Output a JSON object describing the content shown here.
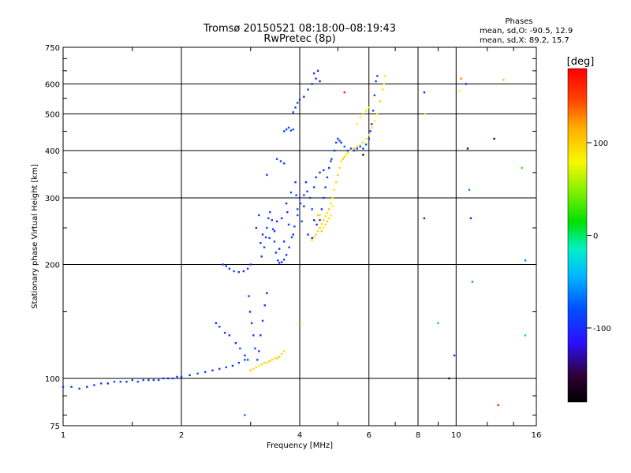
{
  "header": {
    "title": "Tromsø 20150521 08:18:00–08:19:43",
    "subtitle": "RwPretec (8p)",
    "phases_title": "Phases",
    "phases_line_o": "mean, sd,O: -90.5, 12.9",
    "phases_line_x": "mean, sd,X:  89.2, 15.7"
  },
  "colorbar": {
    "unit_label": "[deg]",
    "ticks": [
      {
        "value": 100,
        "label": "100"
      },
      {
        "value": 0,
        "label": "0"
      },
      {
        "value": -100,
        "label": "-100"
      }
    ],
    "range": [
      -180,
      180
    ]
  },
  "chart_data": {
    "type": "scatter",
    "title": "Tromsø 20150521 08:18:00–08:19:43",
    "subtitle": "RwPretec (8p)",
    "xlabel": "Frequency [MHz]",
    "ylabel": "Stationary phase Virtual Height [km]",
    "x_scale": "log",
    "y_scale": "log",
    "xlim": [
      1,
      16
    ],
    "ylim": [
      75,
      750
    ],
    "x_ticks": [
      {
        "value": 1,
        "label": "1"
      },
      {
        "value": 2,
        "label": "2"
      },
      {
        "value": 4,
        "label": "4"
      },
      {
        "value": 6,
        "label": "6"
      },
      {
        "value": 8,
        "label": "8"
      },
      {
        "value": 10,
        "label": "10"
      },
      {
        "value": 16,
        "label": "16"
      }
    ],
    "x_grid": [
      2,
      4,
      6,
      8,
      10
    ],
    "y_ticks": [
      {
        "value": 75,
        "label": "75"
      },
      {
        "value": 100,
        "label": "100"
      },
      {
        "value": 200,
        "label": "200"
      },
      {
        "value": 300,
        "label": "300"
      },
      {
        "value": 400,
        "label": "400"
      },
      {
        "value": 500,
        "label": "500"
      },
      {
        "value": 600,
        "label": "600"
      },
      {
        "value": 750,
        "label": "750"
      }
    ],
    "y_grid": [
      100,
      200,
      300,
      400,
      500,
      600
    ],
    "grid": true,
    "series": [
      {
        "name": "O-mode",
        "color_phase": -90.5,
        "points": [
          [
            1.0,
            95
          ],
          [
            1.05,
            95
          ],
          [
            1.1,
            94
          ],
          [
            1.15,
            95
          ],
          [
            1.2,
            96
          ],
          [
            1.25,
            97
          ],
          [
            1.3,
            97
          ],
          [
            1.35,
            98
          ],
          [
            1.4,
            98
          ],
          [
            1.45,
            98
          ],
          [
            1.5,
            99
          ],
          [
            1.55,
            98
          ],
          [
            1.6,
            99
          ],
          [
            1.65,
            99
          ],
          [
            1.7,
            99
          ],
          [
            1.75,
            99
          ],
          [
            1.8,
            100
          ],
          [
            1.85,
            100
          ],
          [
            1.9,
            100
          ],
          [
            1.95,
            101
          ],
          [
            2.0,
            101
          ],
          [
            2.1,
            102
          ],
          [
            2.2,
            103
          ],
          [
            2.3,
            104
          ],
          [
            2.4,
            105
          ],
          [
            2.5,
            106
          ],
          [
            2.6,
            107
          ],
          [
            2.7,
            108
          ],
          [
            2.8,
            110
          ],
          [
            2.9,
            112
          ],
          [
            2.55,
            200
          ],
          [
            2.6,
            198
          ],
          [
            2.65,
            195
          ],
          [
            2.72,
            192
          ],
          [
            2.8,
            191
          ],
          [
            2.88,
            192
          ],
          [
            2.95,
            195
          ],
          [
            3.0,
            200
          ],
          [
            2.45,
            140
          ],
          [
            2.5,
            137
          ],
          [
            2.58,
            132
          ],
          [
            2.65,
            130
          ],
          [
            2.75,
            124
          ],
          [
            2.82,
            120
          ],
          [
            2.9,
            115
          ],
          [
            2.95,
            112
          ],
          [
            2.97,
            165
          ],
          [
            2.99,
            150
          ],
          [
            3.02,
            140
          ],
          [
            3.05,
            130
          ],
          [
            3.08,
            120
          ],
          [
            3.12,
            112
          ],
          [
            3.15,
            118
          ],
          [
            3.18,
            130
          ],
          [
            3.22,
            142
          ],
          [
            3.26,
            156
          ],
          [
            3.3,
            168
          ],
          [
            3.2,
            210
          ],
          [
            3.25,
            222
          ],
          [
            3.28,
            236
          ],
          [
            3.3,
            250
          ],
          [
            3.33,
            265
          ],
          [
            3.36,
            275
          ],
          [
            3.4,
            262
          ],
          [
            3.42,
            248
          ],
          [
            3.45,
            230
          ],
          [
            3.48,
            215
          ],
          [
            3.52,
            205
          ],
          [
            3.55,
            202
          ],
          [
            3.6,
            203
          ],
          [
            3.65,
            206
          ],
          [
            3.7,
            212
          ],
          [
            3.76,
            222
          ],
          [
            3.82,
            236
          ],
          [
            3.88,
            252
          ],
          [
            3.95,
            270
          ],
          [
            4.02,
            290
          ],
          [
            4.1,
            305
          ],
          [
            4.18,
            312
          ],
          [
            4.25,
            300
          ],
          [
            4.3,
            280
          ],
          [
            4.35,
            262
          ],
          [
            4.42,
            255
          ],
          [
            4.5,
            262
          ],
          [
            4.55,
            280
          ],
          [
            4.6,
            300
          ],
          [
            4.65,
            320
          ],
          [
            4.7,
            340
          ],
          [
            4.75,
            360
          ],
          [
            4.82,
            380
          ],
          [
            4.9,
            400
          ],
          [
            4.95,
            420
          ],
          [
            5.0,
            430
          ],
          [
            5.05,
            425
          ],
          [
            5.1,
            420
          ],
          [
            5.2,
            410
          ],
          [
            5.3,
            400
          ],
          [
            5.4,
            405
          ],
          [
            5.5,
            400
          ],
          [
            5.6,
            405
          ],
          [
            5.7,
            410
          ],
          [
            5.8,
            405
          ],
          [
            5.9,
            415
          ],
          [
            6.0,
            430
          ],
          [
            6.05,
            450
          ],
          [
            6.1,
            470
          ],
          [
            6.15,
            510
          ],
          [
            6.2,
            560
          ],
          [
            6.25,
            610
          ],
          [
            6.3,
            630
          ],
          [
            3.7,
            290
          ],
          [
            3.8,
            310
          ],
          [
            3.9,
            330
          ],
          [
            4.0,
            300
          ],
          [
            4.1,
            285
          ],
          [
            3.6,
            265
          ],
          [
            3.75,
            255
          ],
          [
            3.95,
            280
          ],
          [
            4.05,
            260
          ],
          [
            4.2,
            240
          ],
          [
            4.3,
            235
          ],
          [
            3.85,
            240
          ],
          [
            3.65,
            230
          ],
          [
            3.55,
            220
          ],
          [
            3.45,
            245
          ],
          [
            3.35,
            235
          ],
          [
            3.5,
            260
          ],
          [
            3.72,
            275
          ],
          [
            3.92,
            305
          ],
          [
            4.15,
            330
          ],
          [
            4.4,
            340
          ],
          [
            4.6,
            355
          ],
          [
            4.8,
            375
          ],
          [
            4.5,
            350
          ],
          [
            4.35,
            320
          ],
          [
            3.1,
            250
          ],
          [
            3.15,
            270
          ],
          [
            3.18,
            228
          ],
          [
            3.22,
            240
          ],
          [
            3.65,
            450
          ],
          [
            3.7,
            455
          ],
          [
            3.75,
            460
          ],
          [
            3.8,
            452
          ],
          [
            3.85,
            455
          ],
          [
            3.85,
            505
          ],
          [
            3.9,
            520
          ],
          [
            3.95,
            535
          ],
          [
            4.0,
            545
          ],
          [
            4.1,
            555
          ],
          [
            4.2,
            580
          ],
          [
            4.3,
            600
          ],
          [
            4.4,
            620
          ],
          [
            4.45,
            650
          ],
          [
            4.35,
            640
          ],
          [
            4.5,
            610
          ],
          [
            3.5,
            380
          ],
          [
            3.58,
            375
          ],
          [
            3.65,
            370
          ],
          [
            3.3,
            345
          ]
        ]
      },
      {
        "name": "X-mode",
        "color_phase": 89.2,
        "points": [
          [
            3.0,
            105
          ],
          [
            3.05,
            106
          ],
          [
            3.1,
            107
          ],
          [
            3.15,
            108
          ],
          [
            3.2,
            109
          ],
          [
            3.25,
            110
          ],
          [
            3.3,
            110
          ],
          [
            3.35,
            111
          ],
          [
            3.4,
            112
          ],
          [
            3.45,
            113
          ],
          [
            3.5,
            113
          ],
          [
            3.55,
            114
          ],
          [
            3.6,
            116
          ],
          [
            3.65,
            118
          ],
          [
            4.3,
            232
          ],
          [
            4.35,
            236
          ],
          [
            4.4,
            240
          ],
          [
            4.45,
            245
          ],
          [
            4.5,
            250
          ],
          [
            4.55,
            256
          ],
          [
            4.6,
            262
          ],
          [
            4.65,
            268
          ],
          [
            4.7,
            274
          ],
          [
            4.75,
            280
          ],
          [
            4.8,
            290
          ],
          [
            4.85,
            300
          ],
          [
            4.9,
            315
          ],
          [
            4.95,
            330
          ],
          [
            5.0,
            345
          ],
          [
            5.05,
            360
          ],
          [
            5.1,
            375
          ],
          [
            5.15,
            380
          ],
          [
            5.2,
            385
          ],
          [
            5.25,
            390
          ],
          [
            5.3,
            395
          ],
          [
            5.4,
            400
          ],
          [
            5.5,
            405
          ],
          [
            5.6,
            410
          ],
          [
            5.7,
            415
          ],
          [
            5.8,
            420
          ],
          [
            5.9,
            430
          ],
          [
            6.0,
            440
          ],
          [
            6.1,
            460
          ],
          [
            6.2,
            480
          ],
          [
            6.3,
            500
          ],
          [
            6.4,
            540
          ],
          [
            6.5,
            580
          ],
          [
            6.55,
            600
          ],
          [
            6.6,
            630
          ],
          [
            4.4,
            260
          ],
          [
            4.5,
            270
          ],
          [
            4.6,
            250
          ],
          [
            4.7,
            260
          ],
          [
            4.8,
            270
          ],
          [
            4.55,
            245
          ],
          [
            4.65,
            255
          ],
          [
            4.75,
            265
          ],
          [
            4.45,
            270
          ],
          [
            4.85,
            285
          ],
          [
            5.6,
            470
          ],
          [
            5.7,
            490
          ],
          [
            5.8,
            500
          ],
          [
            5.9,
            510
          ],
          [
            6.0,
            520
          ]
        ]
      },
      {
        "name": "Scattered",
        "points": [
          [
            8.3,
            570,
            -95
          ],
          [
            8.3,
            265,
            -110
          ],
          [
            8.35,
            500,
            70
          ],
          [
            9.6,
            100,
            -150
          ],
          [
            9.9,
            115,
            -100
          ],
          [
            10.2,
            575,
            80
          ],
          [
            10.3,
            620,
            130
          ],
          [
            10.6,
            600,
            -110
          ],
          [
            10.7,
            405,
            -150
          ],
          [
            10.8,
            315,
            -60
          ],
          [
            10.9,
            265,
            -120
          ],
          [
            11.0,
            180,
            -55
          ],
          [
            12.5,
            430,
            -150
          ],
          [
            12.8,
            85,
            160
          ],
          [
            13.2,
            615,
            110
          ],
          [
            14.7,
            360,
            30
          ],
          [
            15.0,
            205,
            -60
          ],
          [
            15.0,
            130,
            -40
          ],
          [
            5.2,
            570,
            160
          ],
          [
            5.8,
            390,
            -160
          ],
          [
            4.0,
            140,
            130
          ],
          [
            2.9,
            80,
            -70
          ],
          [
            9.0,
            140,
            -40
          ]
        ]
      }
    ]
  }
}
